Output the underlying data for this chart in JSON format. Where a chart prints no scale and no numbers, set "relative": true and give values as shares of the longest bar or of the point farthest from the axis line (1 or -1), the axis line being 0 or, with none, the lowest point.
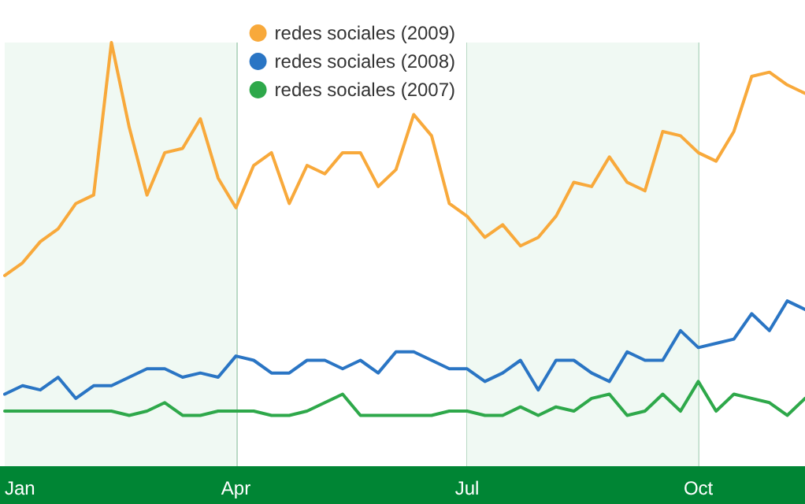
{
  "chart_data": {
    "type": "line",
    "relative": true,
    "categories": [
      "Jan",
      null,
      null,
      null,
      null,
      null,
      null,
      null,
      null,
      null,
      null,
      null,
      null,
      "Apr",
      null,
      null,
      null,
      null,
      null,
      null,
      null,
      null,
      null,
      null,
      null,
      null,
      "Jul",
      null,
      null,
      null,
      null,
      null,
      null,
      null,
      null,
      null,
      null,
      null,
      null,
      "Oct",
      null,
      null,
      null,
      null,
      null,
      null
    ],
    "series": [
      {
        "name": "redes sociales (2009)",
        "color": "#f8a93b",
        "values": [
          0.45,
          0.48,
          0.53,
          0.56,
          0.62,
          0.64,
          1,
          0.8,
          0.64,
          0.74,
          0.75,
          0.82,
          0.68,
          0.61,
          0.71,
          0.74,
          0.62,
          0.71,
          0.69,
          0.74,
          0.74,
          0.66,
          0.7,
          0.83,
          0.78,
          0.62,
          0.59,
          0.54,
          0.57,
          0.52,
          0.54,
          0.59,
          0.67,
          0.66,
          0.73,
          0.67,
          0.65,
          0.79,
          0.78,
          0.74,
          0.72,
          0.79,
          0.92,
          0.93,
          0.9,
          0.88
        ]
      },
      {
        "name": "redes sociales (2008)",
        "color": "#2a75c4",
        "values": [
          0.17,
          0.19,
          0.18,
          0.21,
          0.16,
          0.19,
          0.19,
          0.21,
          0.23,
          0.23,
          0.21,
          0.22,
          0.21,
          0.26,
          0.25,
          0.22,
          0.22,
          0.25,
          0.25,
          0.23,
          0.25,
          0.22,
          0.27,
          0.27,
          0.25,
          0.23,
          0.23,
          0.2,
          0.22,
          0.25,
          0.18,
          0.25,
          0.25,
          0.22,
          0.2,
          0.27,
          0.25,
          0.25,
          0.32,
          0.28,
          0.29,
          0.3,
          0.36,
          0.32,
          0.39,
          0.37
        ]
      },
      {
        "name": "redes sociales (2007)",
        "color": "#2ea84a",
        "values": [
          0.13,
          0.13,
          0.13,
          0.13,
          0.13,
          0.13,
          0.13,
          0.12,
          0.13,
          0.15,
          0.12,
          0.12,
          0.13,
          0.13,
          0.13,
          0.12,
          0.12,
          0.13,
          0.15,
          0.17,
          0.12,
          0.12,
          0.12,
          0.12,
          0.12,
          0.13,
          0.13,
          0.12,
          0.12,
          0.14,
          0.12,
          0.14,
          0.13,
          0.16,
          0.17,
          0.12,
          0.13,
          0.17,
          0.13,
          0.2,
          0.13,
          0.17,
          0.16,
          0.15,
          0.12,
          0.16
        ]
      }
    ],
    "bands": [
      {
        "axis": "x",
        "from": "Jan",
        "to": "Apr",
        "color": "#f0f9f3"
      },
      {
        "axis": "x",
        "from": "Jul",
        "to": "Oct",
        "color": "#f0f9f3"
      }
    ],
    "grid": "x",
    "legend": "top",
    "marker": "none",
    "line_style": "solid"
  }
}
